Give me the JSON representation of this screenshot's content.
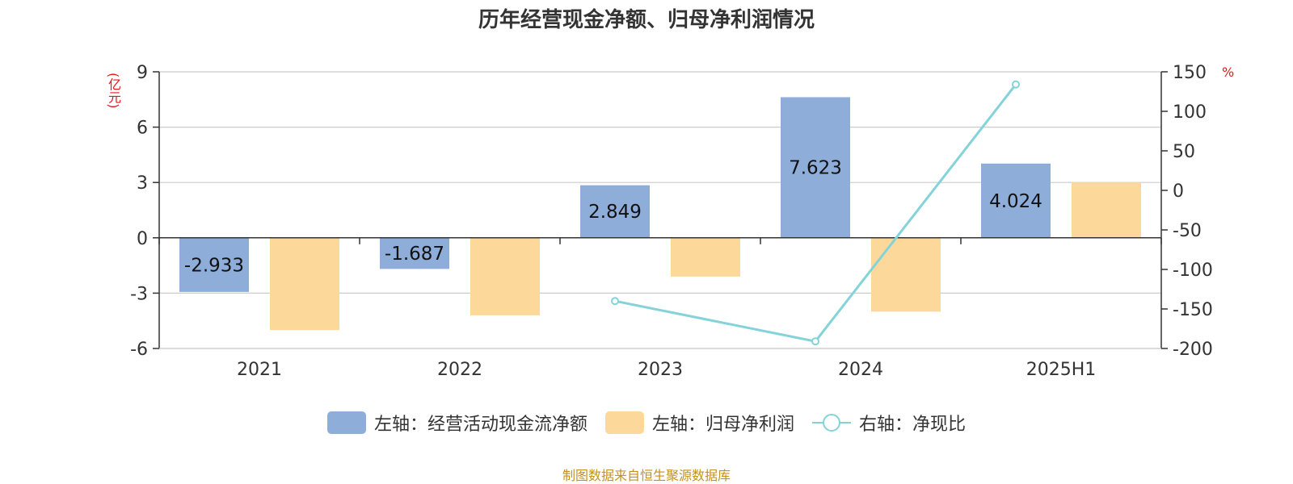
{
  "chart_data": {
    "type": "bar",
    "title": "历年经营现金净额、归母净利润情况",
    "left_axis_unit": "(亿元)",
    "right_axis_unit": "%",
    "categories": [
      "2021",
      "2022",
      "2023",
      "2024",
      "2025H1"
    ],
    "left_axis": {
      "ylim": [
        -6,
        9
      ],
      "ticks": [
        -6,
        -3,
        0,
        3,
        6,
        9
      ]
    },
    "right_axis": {
      "ylim": [
        -200,
        150
      ],
      "ticks": [
        -200,
        -150,
        -100,
        -50,
        0,
        50,
        100,
        150
      ]
    },
    "grid": true,
    "legend_position": "bottom",
    "series": [
      {
        "name": "左轴：经营活动现金流净额",
        "type": "bar",
        "axis": "left",
        "color": "#8eadd9",
        "values": [
          -2.933,
          -1.687,
          2.849,
          7.623,
          4.024
        ],
        "labels": [
          "-2.933",
          "-1.687",
          "2.849",
          "7.623",
          "4.024"
        ]
      },
      {
        "name": "左轴：归母净利润",
        "type": "bar",
        "axis": "left",
        "color": "#fdd89b",
        "values": [
          -5.0,
          -4.2,
          -2.1,
          -4.0,
          3.0
        ]
      },
      {
        "name": "右轴：净现比",
        "type": "line",
        "axis": "right",
        "color": "#84d3d8",
        "values": [
          null,
          null,
          -140,
          -191,
          134
        ]
      }
    ],
    "source": "制图数据来自恒生聚源数据库"
  }
}
